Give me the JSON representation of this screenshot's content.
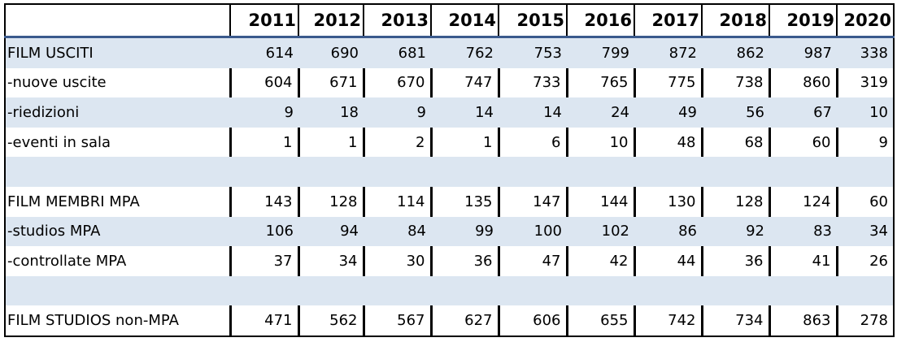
{
  "table": {
    "years": [
      "2011",
      "2012",
      "2013",
      "2014",
      "2015",
      "2016",
      "2017",
      "2018",
      "2019",
      "2020"
    ],
    "rows": [
      {
        "label": "FILM USCITI",
        "values": [
          "614",
          "690",
          "681",
          "762",
          "753",
          "799",
          "872",
          "862",
          "987",
          "338"
        ],
        "style": "shade"
      },
      {
        "label": "-nuove uscite",
        "values": [
          "604",
          "671",
          "670",
          "747",
          "733",
          "765",
          "775",
          "738",
          "860",
          "319"
        ],
        "style": "plain"
      },
      {
        "label": "-riedizioni",
        "values": [
          "9",
          "18",
          "9",
          "14",
          "14",
          "24",
          "49",
          "56",
          "67",
          "10"
        ],
        "style": "shade"
      },
      {
        "label": "-eventi in sala",
        "values": [
          "1",
          "1",
          "2",
          "1",
          "6",
          "10",
          "48",
          "68",
          "60",
          "9"
        ],
        "style": "plain"
      },
      {
        "label": "",
        "values": [
          "",
          "",
          "",
          "",
          "",
          "",
          "",
          "",
          "",
          ""
        ],
        "style": "shade spacer"
      },
      {
        "label": "FILM MEMBRI MPA",
        "values": [
          "143",
          "128",
          "114",
          "135",
          "147",
          "144",
          "130",
          "128",
          "124",
          "60"
        ],
        "style": "plain"
      },
      {
        "label": "-studios MPA",
        "values": [
          "106",
          "94",
          "84",
          "99",
          "100",
          "102",
          "86",
          "92",
          "83",
          "34"
        ],
        "style": "shade"
      },
      {
        "label": "-controllate MPA",
        "values": [
          "37",
          "34",
          "30",
          "36",
          "47",
          "42",
          "44",
          "36",
          "41",
          "26"
        ],
        "style": "plain"
      },
      {
        "label": "",
        "values": [
          "",
          "",
          "",
          "",
          "",
          "",
          "",
          "",
          "",
          ""
        ],
        "style": "shade spacer"
      },
      {
        "label": "FILM STUDIOS non-MPA",
        "values": [
          "471",
          "562",
          "567",
          "627",
          "606",
          "655",
          "742",
          "734",
          "863",
          "278"
        ],
        "style": "plain"
      }
    ]
  }
}
